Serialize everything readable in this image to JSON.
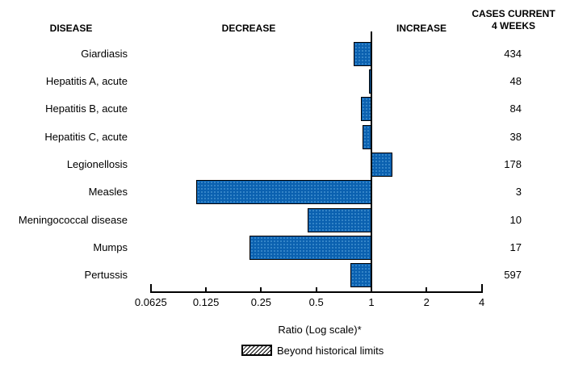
{
  "header": {
    "disease": "DISEASE",
    "decrease": "DECREASE",
    "increase": "INCREASE",
    "cases_line1": "CASES CURRENT",
    "cases_line2": "4 WEEKS"
  },
  "chart_data": {
    "type": "bar",
    "orientation": "horizontal",
    "scale": "log",
    "baseline": 1,
    "xlabel": "Ratio (Log scale)*",
    "xticks": [
      "0.0625",
      "0.125",
      "0.25",
      "0.5",
      "1",
      "2",
      "4"
    ],
    "xlim": [
      0.0625,
      4
    ],
    "bar_color": "#0b61b0",
    "legend": {
      "label": "Beyond historical limits",
      "swatch": "diagonal-hatch"
    },
    "rows": [
      {
        "disease": "Giardiasis",
        "ratio": 0.8,
        "cases_current_4_weeks": 434,
        "beyond_historical_limits": false
      },
      {
        "disease": "Hepatitis A, acute",
        "ratio": 0.97,
        "cases_current_4_weeks": 48,
        "beyond_historical_limits": false
      },
      {
        "disease": "Hepatitis B, acute",
        "ratio": 0.88,
        "cases_current_4_weeks": 84,
        "beyond_historical_limits": false
      },
      {
        "disease": "Hepatitis C, acute",
        "ratio": 0.89,
        "cases_current_4_weeks": 38,
        "beyond_historical_limits": false
      },
      {
        "disease": "Legionellosis",
        "ratio": 1.32,
        "cases_current_4_weeks": 178,
        "beyond_historical_limits": false
      },
      {
        "disease": "Measles",
        "ratio": 0.11,
        "cases_current_4_weeks": 3,
        "beyond_historical_limits": false
      },
      {
        "disease": "Meningococcal disease",
        "ratio": 0.45,
        "cases_current_4_weeks": 10,
        "beyond_historical_limits": false
      },
      {
        "disease": "Mumps",
        "ratio": 0.215,
        "cases_current_4_weeks": 17,
        "beyond_historical_limits": false
      },
      {
        "disease": "Pertussis",
        "ratio": 0.77,
        "cases_current_4_weeks": 597,
        "beyond_historical_limits": false
      }
    ]
  }
}
